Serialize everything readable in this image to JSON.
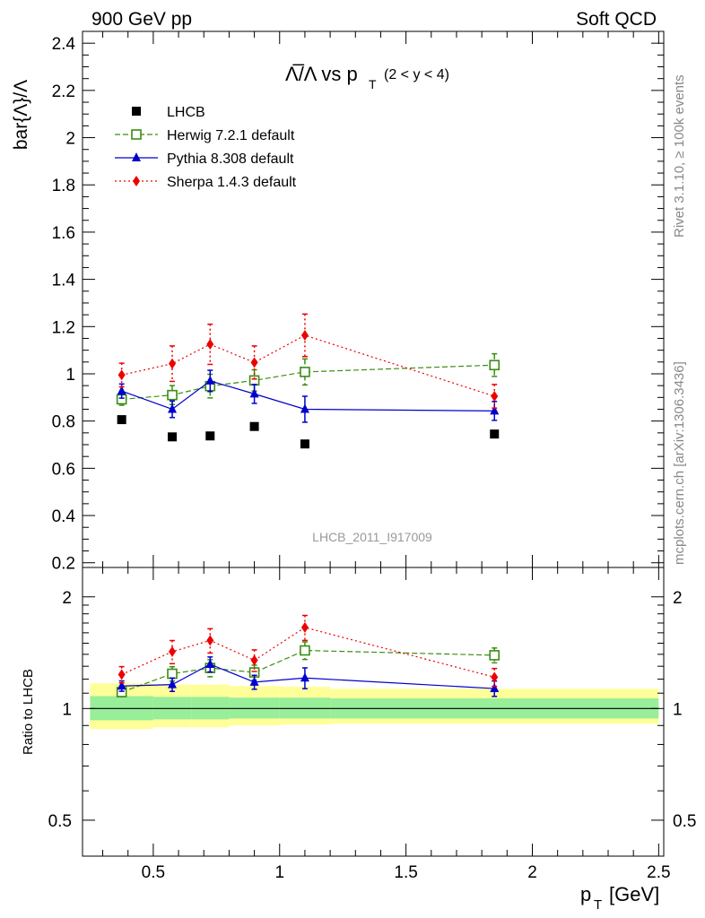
{
  "header": {
    "left": "900 GeV pp",
    "right": "Soft QCD"
  },
  "side_labels": {
    "rivet": "Rivet 3.1.10, ≥ 100k events",
    "mcplots": "mcplots.cern.ch [arXiv:1306.3436]"
  },
  "chart_data": [
    {
      "panel": "main",
      "type": "scatter",
      "title_main": "Λ̅/Λ vs p",
      "title_sub": "T",
      "title_range": "(2 < y < 4)",
      "ylabel": "bar{Λ}/Λ",
      "watermark": "LHCB_2011_I917009",
      "xlim": [
        0.22,
        2.52
      ],
      "ylim": [
        0.18,
        2.45
      ],
      "yticks": [
        0.2,
        0.4,
        0.6,
        0.8,
        1,
        1.2,
        1.4,
        1.6,
        1.8,
        2,
        2.2,
        2.4
      ],
      "ytick_labels": [
        "0.2",
        "0.4",
        "0.6",
        "0.8",
        "1",
        "1.2",
        "1.4",
        "1.6",
        "1.8",
        "2",
        "2.2",
        "2.4"
      ],
      "x": [
        0.375,
        0.575,
        0.725,
        0.9,
        1.1,
        1.85
      ],
      "series": [
        {
          "name": "LHCB",
          "color": "#000000",
          "marker": "square",
          "line": "none",
          "values": [
            0.806,
            0.733,
            0.737,
            0.777,
            0.703,
            0.745
          ],
          "errors": [
            0,
            0,
            0,
            0,
            0,
            0
          ]
        },
        {
          "name": "Herwig 7.2.1 default",
          "color": "#3a8d12",
          "marker": "open-square",
          "line": "dashed",
          "values": [
            0.892,
            0.91,
            0.948,
            0.972,
            1.008,
            1.037
          ],
          "errors": [
            0.025,
            0.04,
            0.05,
            0.045,
            0.055,
            0.048
          ]
        },
        {
          "name": "Pythia 8.308 default",
          "color": "#0000cc",
          "marker": "triangle",
          "line": "solid",
          "values": [
            0.927,
            0.85,
            0.97,
            0.915,
            0.85,
            0.843
          ],
          "errors": [
            0.03,
            0.035,
            0.045,
            0.04,
            0.055,
            0.04
          ]
        },
        {
          "name": "Sherpa 1.4.3 default",
          "color": "#ee0000",
          "marker": "diamond",
          "line": "dotted",
          "values": [
            0.995,
            1.043,
            1.125,
            1.048,
            1.163,
            0.905
          ],
          "errors": [
            0.05,
            0.075,
            0.085,
            0.07,
            0.09,
            0.05
          ]
        }
      ]
    },
    {
      "panel": "ratio",
      "type": "scatter",
      "ylabel": "Ratio to LHCB",
      "xlabel_main": "p",
      "xlabel_sub": "T",
      "xlabel_unit": "[GeV]",
      "yscale": "log",
      "xlim": [
        0.22,
        2.52
      ],
      "ylim": [
        0.4,
        2.4
      ],
      "xticks": [
        0.5,
        1,
        1.5,
        2,
        2.5
      ],
      "xtick_labels": [
        "0.5",
        "1",
        "1.5",
        "2",
        "2.5"
      ],
      "yticks": [
        0.5,
        1,
        2
      ],
      "ytick_labels": [
        "0.5",
        "1",
        "2"
      ],
      "x": [
        0.375,
        0.575,
        0.725,
        0.9,
        1.1,
        1.85
      ],
      "bands": {
        "edges": [
          0.25,
          0.5,
          0.65,
          0.8,
          1.0,
          1.2,
          2.5
        ],
        "yellow": [
          [
            0.88,
            1.17
          ],
          [
            0.89,
            1.16
          ],
          [
            0.89,
            1.16
          ],
          [
            0.9,
            1.15
          ],
          [
            0.905,
            1.145
          ],
          [
            0.91,
            1.13
          ]
        ],
        "green": [
          [
            0.93,
            1.08
          ],
          [
            0.935,
            1.075
          ],
          [
            0.935,
            1.075
          ],
          [
            0.94,
            1.07
          ],
          [
            0.94,
            1.07
          ],
          [
            0.94,
            1.065
          ]
        ]
      },
      "series": [
        {
          "name": "Herwig 7.2.1 default",
          "color": "#3a8d12",
          "marker": "open-square",
          "line": "dashed",
          "values": [
            1.107,
            1.241,
            1.286,
            1.251,
            1.434,
            1.392
          ],
          "errors": [
            0.031,
            0.055,
            0.068,
            0.058,
            0.078,
            0.064
          ]
        },
        {
          "name": "Pythia 8.308 default",
          "color": "#0000cc",
          "marker": "triangle",
          "line": "solid",
          "values": [
            1.15,
            1.16,
            1.316,
            1.178,
            1.209,
            1.132
          ],
          "errors": [
            0.037,
            0.048,
            0.061,
            0.051,
            0.078,
            0.054
          ]
        },
        {
          "name": "Sherpa 1.4.3 default",
          "color": "#ee0000",
          "marker": "diamond",
          "line": "dotted",
          "values": [
            1.235,
            1.423,
            1.526,
            1.349,
            1.654,
            1.215
          ],
          "errors": [
            0.062,
            0.102,
            0.115,
            0.09,
            0.128,
            0.067
          ]
        }
      ]
    }
  ]
}
